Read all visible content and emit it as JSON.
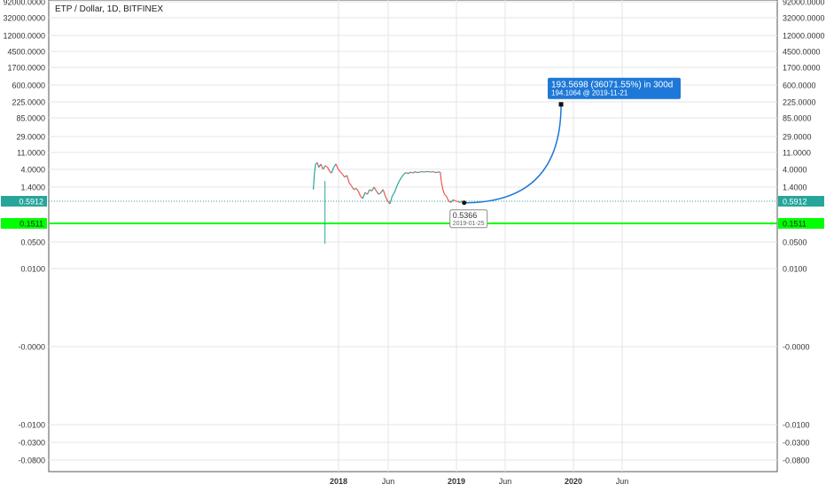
{
  "chart_data": {
    "type": "line",
    "title": "ETP / Dollar, 1D, BITFINEX",
    "y_scale": "log",
    "y_ticks": [
      "92000.0000",
      "32000.0000",
      "12000.0000",
      "4500.0000",
      "1700.0000",
      "600.0000",
      "225.0000",
      "85.0000",
      "29.0000",
      "11.0000",
      "4.0000",
      "1.4000",
      "0.5912",
      "0.1511",
      "0.0500",
      "0.0100",
      "-0.0000",
      "-0.0100",
      "-0.0300",
      "-0.0800"
    ],
    "x_ticks": [
      "2018",
      "Jun",
      "2019",
      "Jun",
      "2020",
      "Jun"
    ],
    "x_tick_dates": [
      "2018-01-01",
      "2018-06-01",
      "2019-01-01",
      "2019-06-01",
      "2020-01-01",
      "2020-06-01"
    ],
    "grid": true,
    "series": [
      {
        "values": [
          {
            "x": "2017-10-15",
            "y": 1.2
          },
          {
            "x": "2017-10-18",
            "y": 3.0
          },
          {
            "x": "2017-10-22",
            "y": 5.5
          },
          {
            "x": "2017-10-27",
            "y": 6.0
          },
          {
            "x": "2017-11-01",
            "y": 4.5
          },
          {
            "x": "2017-11-07",
            "y": 5.5
          },
          {
            "x": "2017-11-14",
            "y": 4.0
          },
          {
            "x": "2017-11-21",
            "y": 5.0
          },
          {
            "x": "2017-11-28",
            "y": 4.5
          },
          {
            "x": "2017-12-05",
            "y": 3.5
          },
          {
            "x": "2017-12-10",
            "y": 3.2
          },
          {
            "x": "2017-12-17",
            "y": 4.5
          },
          {
            "x": "2017-12-24",
            "y": 5.5
          },
          {
            "x": "2017-12-31",
            "y": 4.0
          },
          {
            "x": "2018-01-06",
            "y": 3.5
          },
          {
            "x": "2018-01-13",
            "y": 3.0
          },
          {
            "x": "2018-01-20",
            "y": 2.5
          },
          {
            "x": "2018-01-27",
            "y": 2.8
          },
          {
            "x": "2018-02-03",
            "y": 1.8
          },
          {
            "x": "2018-02-10",
            "y": 1.5
          },
          {
            "x": "2018-02-17",
            "y": 1.2
          },
          {
            "x": "2018-02-24",
            "y": 1.3
          },
          {
            "x": "2018-03-03",
            "y": 1.1
          },
          {
            "x": "2018-03-10",
            "y": 0.8
          },
          {
            "x": "2018-03-17",
            "y": 0.7
          },
          {
            "x": "2018-03-24",
            "y": 1.0
          },
          {
            "x": "2018-03-31",
            "y": 0.9
          },
          {
            "x": "2018-04-07",
            "y": 1.2
          },
          {
            "x": "2018-04-14",
            "y": 1.1
          },
          {
            "x": "2018-04-21",
            "y": 1.4
          },
          {
            "x": "2018-04-28",
            "y": 1.1
          },
          {
            "x": "2018-05-05",
            "y": 0.9
          },
          {
            "x": "2018-05-12",
            "y": 1.0
          },
          {
            "x": "2018-05-19",
            "y": 1.2
          },
          {
            "x": "2018-05-26",
            "y": 0.8
          },
          {
            "x": "2018-06-02",
            "y": 0.6
          },
          {
            "x": "2018-06-09",
            "y": 0.5
          },
          {
            "x": "2018-06-16",
            "y": 0.8
          },
          {
            "x": "2018-06-23",
            "y": 1.0
          },
          {
            "x": "2018-07-01",
            "y": 1.5
          },
          {
            "x": "2018-07-08",
            "y": 2.0
          },
          {
            "x": "2018-07-15",
            "y": 2.5
          },
          {
            "x": "2018-07-22",
            "y": 3.0
          },
          {
            "x": "2018-07-29",
            "y": 3.3
          },
          {
            "x": "2018-08-05",
            "y": 3.1
          },
          {
            "x": "2018-08-12",
            "y": 3.4
          },
          {
            "x": "2018-08-19",
            "y": 3.2
          },
          {
            "x": "2018-08-26",
            "y": 3.5
          },
          {
            "x": "2018-09-02",
            "y": 3.3
          },
          {
            "x": "2018-09-09",
            "y": 3.4
          },
          {
            "x": "2018-09-16",
            "y": 3.5
          },
          {
            "x": "2018-09-23",
            "y": 3.4
          },
          {
            "x": "2018-09-30",
            "y": 3.5
          },
          {
            "x": "2018-10-07",
            "y": 3.5
          },
          {
            "x": "2018-10-14",
            "y": 3.4
          },
          {
            "x": "2018-10-21",
            "y": 3.5
          },
          {
            "x": "2018-10-28",
            "y": 3.3
          },
          {
            "x": "2018-11-04",
            "y": 3.4
          },
          {
            "x": "2018-11-12",
            "y": 3.4
          },
          {
            "x": "2018-11-15",
            "y": 2.0
          },
          {
            "x": "2018-11-20",
            "y": 1.2
          },
          {
            "x": "2018-11-25",
            "y": 0.9
          },
          {
            "x": "2018-12-01",
            "y": 0.8
          },
          {
            "x": "2018-12-08",
            "y": 0.6
          },
          {
            "x": "2018-12-15",
            "y": 0.55
          },
          {
            "x": "2018-12-22",
            "y": 0.65
          },
          {
            "x": "2018-12-29",
            "y": 0.6
          },
          {
            "x": "2019-01-05",
            "y": 0.58
          },
          {
            "x": "2019-01-12",
            "y": 0.55
          },
          {
            "x": "2019-01-19",
            "y": 0.6
          },
          {
            "x": "2019-01-25",
            "y": 0.5366
          }
        ]
      }
    ],
    "spike_low": {
      "x": "2017-11-20",
      "y": 0.045
    },
    "current_price": {
      "label": "0.5912",
      "value": 0.5912,
      "color": "#26a69a"
    },
    "support_line": {
      "label": "0.1511",
      "value": 0.1511,
      "color": "#00ff00"
    },
    "projection": {
      "start": {
        "x": "2019-01-25",
        "y": 0.5366
      },
      "end": {
        "x": "2019-11-21",
        "y": 194.1064
      },
      "color": "#1e78d7"
    },
    "annotations": {
      "start_label_value": "0.5366",
      "start_label_date": "2019-01-25",
      "end_label_main": "193.5698 (36071.55%) in 300d",
      "end_label_sub": "194.1064  @ 2019-11-21"
    },
    "colors": {
      "up": "#26a69a",
      "down": "#ef5350",
      "grid": "#e6e6e6",
      "axis_text": "#333333"
    }
  }
}
